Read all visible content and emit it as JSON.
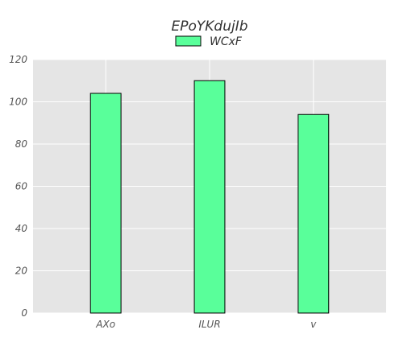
{
  "chart_data": {
    "type": "bar",
    "title": "EPoYKdujIb",
    "xlabel": "",
    "ylabel": "",
    "categories": [
      "AXo",
      "ILUR",
      "v"
    ],
    "series": [
      {
        "name": "WCxF",
        "values": [
          104,
          110,
          94
        ]
      }
    ],
    "ylim": [
      0,
      120
    ],
    "yticks": [
      0,
      20,
      40,
      60,
      80,
      100,
      120
    ],
    "grid": true,
    "legend": "top-center",
    "colors": {
      "bar_fill": "#59ff9a",
      "bar_edge": "#000000",
      "plot_background": "#e5e5e5",
      "grid": "#ffffff"
    }
  }
}
